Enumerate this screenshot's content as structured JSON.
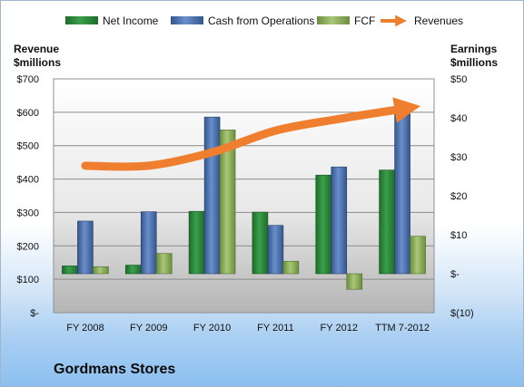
{
  "chart_data": {
    "type": "bar",
    "title": "Gordmans Stores",
    "categories": [
      "FY 2008",
      "FY 2009",
      "FY 2010",
      "FY 2011",
      "FY 2012",
      "TTM 7-2012"
    ],
    "left_axis": {
      "label_line1": "Revenue",
      "label_line2": "$millions",
      "range": [
        0,
        700
      ],
      "ticks": [
        0,
        100,
        200,
        300,
        400,
        500,
        600,
        700
      ],
      "tick_labels": [
        "$-",
        "$100",
        "$200",
        "$300",
        "$400",
        "$500",
        "$600",
        "$700"
      ]
    },
    "right_axis": {
      "label_line1": "Earnings",
      "label_line2": "$millions",
      "range": [
        -10,
        50
      ],
      "ticks": [
        -10,
        0,
        10,
        20,
        30,
        40,
        50
      ],
      "tick_labels": [
        "$(10)",
        "$-",
        "$10",
        "$20",
        "$30",
        "$40",
        "$50"
      ]
    },
    "series": [
      {
        "name": "Net Income",
        "axis": "right",
        "kind": "bar",
        "color": "#2e8b3e",
        "values": [
          2.0,
          2.2,
          16.0,
          15.8,
          25.3,
          26.6
        ]
      },
      {
        "name": "Cash from Operations",
        "axis": "right",
        "kind": "bar",
        "color": "#4a72b0",
        "values": [
          13.5,
          15.9,
          40.2,
          12.4,
          27.4,
          42.1
        ]
      },
      {
        "name": "FCF",
        "axis": "right",
        "kind": "bar",
        "color": "#8db05a",
        "values": [
          1.8,
          5.2,
          36.9,
          3.2,
          -4.0,
          9.6
        ]
      },
      {
        "name": "Revenues",
        "axis": "left",
        "kind": "line",
        "color": "#ef7e2e",
        "values": [
          440,
          440,
          480,
          545,
          580,
          610
        ]
      }
    ],
    "grid": true,
    "legend_position": "top"
  }
}
